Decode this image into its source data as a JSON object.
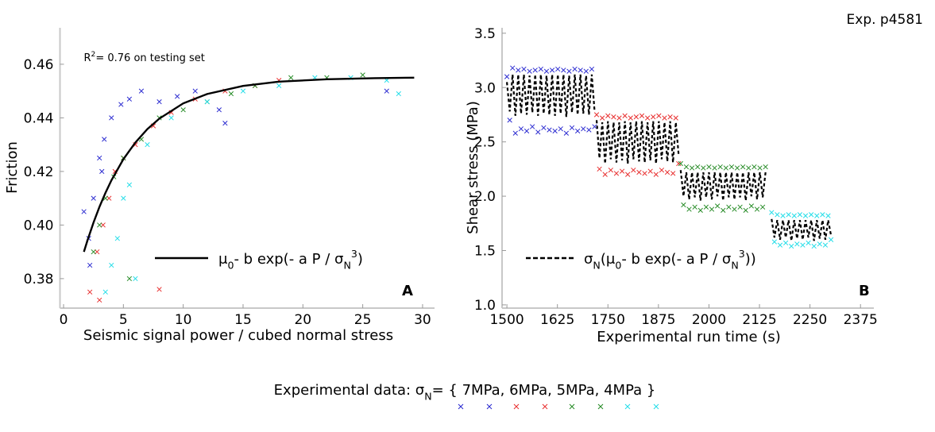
{
  "page": {
    "tag": "Exp. p4581",
    "legend": {
      "parts": [
        {
          "text": "Experimental data:  "
        },
        {
          "text": "σ"
        },
        {
          "text": "N",
          "shift": "sub"
        },
        {
          "text": "= { 7MPa,  6MPa,  5MPa,  4MPa }"
        }
      ],
      "marker_colors": [
        "#2a2ad0",
        "#2a2ad0",
        "#e83030",
        "#e83030",
        "#248a24",
        "#248a24",
        "#22dde8",
        "#22dde8"
      ]
    }
  },
  "chart_data": [
    {
      "type": "scatter",
      "panel": "A",
      "xlabel": "Seismic signal power / cubed normal stress",
      "ylabel": "Friction",
      "annotation": [
        {
          "text": "R"
        },
        {
          "text": "2",
          "shift": "sup"
        },
        {
          "text": "= 0.76 on testing set"
        }
      ],
      "xlim": [
        -0.3,
        31
      ],
      "ylim": [
        0.369,
        0.4736
      ],
      "xticks": [
        0,
        5,
        10,
        15,
        20,
        25,
        30
      ],
      "yticks": [
        0.38,
        {
          "value": 0.4,
          "label": "0.40"
        },
        0.42,
        0.44,
        0.46
      ],
      "series": [
        {
          "color": "#2a2ad0",
          "marker": "x",
          "x": [
            1.7,
            2.1,
            2.5,
            3.0,
            3.4,
            4.0,
            4.8,
            5.5,
            6.5,
            8,
            9.5,
            11,
            13,
            13.5,
            2.2,
            3.2,
            27
          ],
          "y": [
            0.405,
            0.395,
            0.41,
            0.425,
            0.432,
            0.44,
            0.445,
            0.447,
            0.45,
            0.446,
            0.448,
            0.45,
            0.443,
            0.438,
            0.385,
            0.42,
            0.45
          ]
        },
        {
          "color": "#e83030",
          "marker": "x",
          "x": [
            2.2,
            2.8,
            3.3,
            3.8,
            4.3,
            5,
            6,
            7.5,
            9,
            11,
            13.5,
            16,
            18,
            8,
            3
          ],
          "y": [
            0.375,
            0.39,
            0.4,
            0.41,
            0.42,
            0.425,
            0.43,
            0.437,
            0.442,
            0.447,
            0.45,
            0.452,
            0.454,
            0.376,
            0.372
          ]
        },
        {
          "color": "#248a24",
          "marker": "x",
          "x": [
            2.5,
            3,
            3.5,
            4.2,
            5,
            6.5,
            8,
            10,
            12,
            14,
            16,
            19,
            22,
            25,
            5.5
          ],
          "y": [
            0.39,
            0.4,
            0.41,
            0.418,
            0.425,
            0.432,
            0.44,
            0.443,
            0.446,
            0.449,
            0.452,
            0.455,
            0.455,
            0.456,
            0.38
          ]
        },
        {
          "color": "#22dde8",
          "marker": "x",
          "x": [
            3.5,
            4,
            4.5,
            5,
            5.5,
            6,
            7,
            9,
            12,
            15,
            18,
            21,
            24,
            27,
            28
          ],
          "y": [
            0.375,
            0.385,
            0.395,
            0.41,
            0.415,
            0.38,
            0.43,
            0.44,
            0.446,
            0.45,
            0.452,
            0.455,
            0.455,
            0.454,
            0.449
          ]
        },
        {
          "color": "#000000",
          "marker": "line",
          "x": [
            1.7,
            2,
            2.5,
            3,
            3.5,
            4,
            5,
            6,
            7,
            8,
            10,
            12,
            15,
            18,
            22,
            26,
            29.3
          ],
          "y": [
            0.39,
            0.3943,
            0.4009,
            0.4068,
            0.412,
            0.4167,
            0.4246,
            0.4308,
            0.4358,
            0.4397,
            0.4454,
            0.4489,
            0.4519,
            0.4535,
            0.4544,
            0.4548,
            0.455
          ]
        }
      ],
      "fit_legend": {
        "series": 4,
        "parts": [
          {
            "text": "μ"
          },
          {
            "text": "0",
            "shift": "sub"
          },
          {
            "text": "- b exp(- a P / σ"
          },
          {
            "text": "N",
            "shift": "sub"
          },
          {
            "text": "3",
            "shift": "sup"
          },
          {
            "text": ")"
          }
        ]
      }
    },
    {
      "type": "scatter",
      "panel": "B",
      "xlabel": "Experimental run time (s)",
      "ylabel": "Shear stress (MPa)",
      "xlim": [
        1488,
        2408
      ],
      "ylim": [
        0.97,
        3.55
      ],
      "xticks": [
        1500,
        1625,
        1750,
        1875,
        2000,
        2125,
        2250,
        2375
      ],
      "yticks": [
        {
          "value": 1,
          "label": "1.0"
        },
        1.5,
        {
          "value": 2,
          "label": "2.0"
        },
        2.5,
        {
          "value": 3,
          "label": "3.0"
        },
        3.5
      ],
      "series": [
        {
          "color": "#2a2ad0",
          "marker": "x",
          "x": [
            1500,
            1507,
            1514,
            1521,
            1528,
            1535,
            1542,
            1549,
            1556,
            1563,
            1570,
            1577,
            1584,
            1591,
            1598,
            1605,
            1612,
            1619,
            1626,
            1633,
            1640,
            1647,
            1654,
            1661,
            1668,
            1675,
            1682,
            1689,
            1696,
            1703,
            1710,
            1717
          ],
          "y": [
            3.1,
            2.7,
            3.18,
            2.58,
            3.16,
            2.62,
            3.17,
            2.6,
            3.15,
            2.64,
            3.16,
            2.59,
            3.17,
            2.63,
            3.15,
            2.61,
            3.16,
            2.6,
            3.17,
            2.62,
            3.16,
            2.58,
            3.15,
            2.63,
            3.17,
            2.6,
            3.16,
            2.62,
            3.15,
            2.61,
            3.17,
            2.64
          ]
        },
        {
          "color": "#e83030",
          "marker": "x",
          "x": [
            1722,
            1729,
            1736,
            1743,
            1750,
            1757,
            1764,
            1771,
            1778,
            1785,
            1792,
            1799,
            1806,
            1813,
            1820,
            1827,
            1834,
            1841,
            1848,
            1855,
            1862,
            1869,
            1876,
            1883,
            1890,
            1897,
            1904,
            1911,
            1918,
            1925
          ],
          "y": [
            2.75,
            2.25,
            2.72,
            2.2,
            2.74,
            2.24,
            2.73,
            2.21,
            2.72,
            2.23,
            2.74,
            2.2,
            2.72,
            2.24,
            2.73,
            2.22,
            2.74,
            2.21,
            2.72,
            2.23,
            2.73,
            2.2,
            2.74,
            2.24,
            2.72,
            2.22,
            2.73,
            2.21,
            2.72,
            2.3
          ]
        },
        {
          "color": "#248a24",
          "marker": "x",
          "x": [
            1930,
            1937,
            1944,
            1951,
            1958,
            1965,
            1972,
            1979,
            1986,
            1993,
            2000,
            2007,
            2014,
            2021,
            2028,
            2035,
            2042,
            2049,
            2056,
            2063,
            2070,
            2077,
            2084,
            2091,
            2098,
            2105,
            2112,
            2119,
            2126,
            2133,
            2140
          ],
          "y": [
            2.3,
            1.92,
            2.27,
            1.88,
            2.26,
            1.9,
            2.27,
            1.87,
            2.26,
            1.9,
            2.27,
            1.88,
            2.26,
            1.91,
            2.27,
            1.87,
            2.26,
            1.9,
            2.27,
            1.88,
            2.26,
            1.9,
            2.27,
            1.87,
            2.26,
            1.91,
            2.27,
            1.88,
            2.26,
            1.9,
            2.27
          ]
        },
        {
          "color": "#22dde8",
          "marker": "x",
          "x": [
            2155,
            2162,
            2169,
            2176,
            2183,
            2190,
            2197,
            2204,
            2211,
            2218,
            2225,
            2232,
            2239,
            2246,
            2253,
            2260,
            2267,
            2274,
            2281,
            2288,
            2295,
            2302
          ],
          "y": [
            1.85,
            1.58,
            1.83,
            1.55,
            1.82,
            1.57,
            1.83,
            1.54,
            1.82,
            1.56,
            1.83,
            1.55,
            1.82,
            1.57,
            1.83,
            1.54,
            1.82,
            1.56,
            1.83,
            1.55,
            1.82,
            1.6
          ]
        },
        {
          "color": "#000000",
          "marker": "line",
          "dashed": true,
          "x": [
            1500,
            1507,
            1514,
            1521,
            1528,
            1535,
            1542,
            1549,
            1556,
            1563,
            1570,
            1577,
            1584,
            1591,
            1598,
            1605,
            1612,
            1619,
            1626,
            1633,
            1640,
            1647,
            1654,
            1661,
            1668,
            1675,
            1682,
            1689,
            1696,
            1703,
            1710,
            1717
          ],
          "y": [
            3.05,
            2.78,
            3.12,
            2.74,
            3.12,
            2.76,
            3.12,
            2.75,
            3.11,
            2.77,
            3.12,
            2.74,
            3.12,
            2.76,
            3.11,
            2.75,
            3.12,
            2.74,
            3.12,
            2.76,
            3.12,
            2.73,
            3.11,
            2.77,
            3.12,
            2.75,
            3.12,
            2.76,
            3.11,
            2.75,
            3.12,
            2.78
          ]
        },
        {
          "color": "#000000",
          "marker": "line",
          "dashed": true,
          "x": [
            1722,
            1729,
            1736,
            1743,
            1750,
            1757,
            1764,
            1771,
            1778,
            1785,
            1792,
            1799,
            1806,
            1813,
            1820,
            1827,
            1834,
            1841,
            1848,
            1855,
            1862,
            1869,
            1876,
            1883,
            1890,
            1897,
            1904,
            1911,
            1918,
            1925
          ],
          "y": [
            2.7,
            2.35,
            2.68,
            2.3,
            2.69,
            2.34,
            2.68,
            2.31,
            2.68,
            2.33,
            2.69,
            2.3,
            2.68,
            2.34,
            2.69,
            2.32,
            2.69,
            2.31,
            2.68,
            2.33,
            2.69,
            2.3,
            2.69,
            2.34,
            2.68,
            2.32,
            2.69,
            2.31,
            2.68,
            2.38
          ]
        },
        {
          "color": "#000000",
          "marker": "line",
          "dashed": true,
          "x": [
            1930,
            1937,
            1944,
            1951,
            1958,
            1965,
            1972,
            1979,
            1986,
            1993,
            2000,
            2007,
            2014,
            2021,
            2028,
            2035,
            2042,
            2049,
            2056,
            2063,
            2070,
            2077,
            2084,
            2091,
            2098,
            2105,
            2112,
            2119,
            2126,
            2133,
            2140
          ],
          "y": [
            2.24,
            2.0,
            2.22,
            1.97,
            2.22,
            1.99,
            2.22,
            1.96,
            2.22,
            1.99,
            2.22,
            1.97,
            2.22,
            2.0,
            2.22,
            1.96,
            2.22,
            1.99,
            2.22,
            1.97,
            2.22,
            1.99,
            2.22,
            1.96,
            2.22,
            2.0,
            2.22,
            1.97,
            2.22,
            1.99,
            2.22
          ]
        },
        {
          "color": "#000000",
          "marker": "line",
          "dashed": true,
          "x": [
            2155,
            2162,
            2169,
            2176,
            2183,
            2190,
            2197,
            2204,
            2211,
            2218,
            2225,
            2232,
            2239,
            2246,
            2253,
            2260,
            2267,
            2274,
            2281,
            2288,
            2295,
            2302
          ],
          "y": [
            1.79,
            1.62,
            1.78,
            1.6,
            1.78,
            1.62,
            1.78,
            1.59,
            1.78,
            1.61,
            1.78,
            1.6,
            1.78,
            1.62,
            1.78,
            1.59,
            1.78,
            1.61,
            1.78,
            1.6,
            1.78,
            1.64
          ]
        }
      ],
      "fit_legend": {
        "series": 4,
        "parts": [
          {
            "text": "σ"
          },
          {
            "text": "N",
            "shift": "sub"
          },
          {
            "text": "("
          },
          {
            "text": "μ"
          },
          {
            "text": "0",
            "shift": "sub"
          },
          {
            "text": "- b exp(- a P / σ"
          },
          {
            "text": "N",
            "shift": "sub"
          },
          {
            "text": "3",
            "shift": "sup"
          },
          {
            "text": ")"
          },
          {
            "text": ")"
          }
        ]
      }
    }
  ]
}
